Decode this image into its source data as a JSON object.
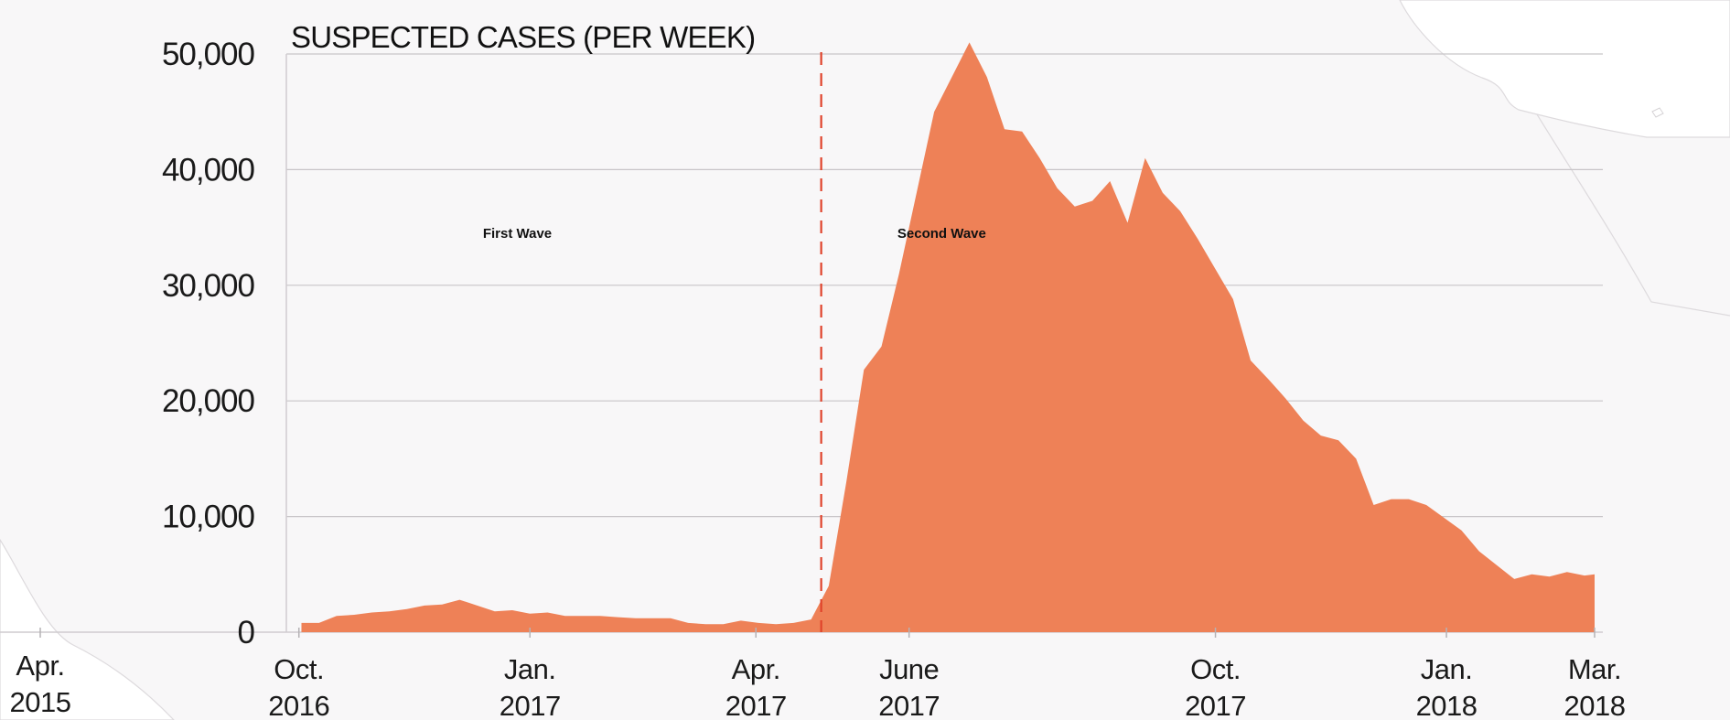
{
  "chart_data": {
    "type": "area",
    "title": "SUSPECTED CASES (PER WEEK)",
    "ylim": [
      0,
      50000
    ],
    "yticks": [
      {
        "value": 0,
        "label": "0"
      },
      {
        "value": 10000,
        "label": "10,000"
      },
      {
        "value": 20000,
        "label": "20,000"
      },
      {
        "value": 30000,
        "label": "30,000"
      },
      {
        "value": 40000,
        "label": "40,000"
      },
      {
        "value": 50000,
        "label": "50,000"
      }
    ],
    "xticks": [
      {
        "date": "2016-10-01",
        "line1": "Oct.",
        "line2": "2016"
      },
      {
        "date": "2017-01-01",
        "line1": "Jan.",
        "line2": "2017"
      },
      {
        "date": "2017-04-01",
        "line1": "Apr.",
        "line2": "2017"
      },
      {
        "date": "2017-06-01",
        "line1": "June",
        "line2": "2017"
      },
      {
        "date": "2017-10-01",
        "line1": "Oct.",
        "line2": "2017"
      },
      {
        "date": "2018-01-01",
        "line1": "Jan.",
        "line2": "2018"
      },
      {
        "date": "2018-03-01",
        "line1": "Mar.",
        "line2": "2018"
      }
    ],
    "background_axis_label": {
      "line1": "Apr.",
      "line2": "2015"
    },
    "grid": true,
    "fill_color": "#ee8157",
    "divider": {
      "date": "2017-04-27",
      "color": "#e0432b",
      "style": "dashed"
    },
    "annotations": [
      {
        "text": "First Wave",
        "date": "2016-12-27",
        "value": 34500
      },
      {
        "text": "Second Wave",
        "date": "2017-06-14",
        "value": 34500
      }
    ],
    "series": [
      {
        "x": [
          "2016-10-02",
          "2016-10-09",
          "2016-10-16",
          "2016-10-23",
          "2016-10-30",
          "2016-11-06",
          "2016-11-13",
          "2016-11-20",
          "2016-11-27",
          "2016-12-04",
          "2016-12-11",
          "2016-12-18",
          "2016-12-25",
          "2017-01-01",
          "2017-01-08",
          "2017-01-15",
          "2017-01-22",
          "2017-01-29",
          "2017-02-05",
          "2017-02-12",
          "2017-02-19",
          "2017-02-26",
          "2017-03-05",
          "2017-03-12",
          "2017-03-19",
          "2017-03-26",
          "2017-04-02",
          "2017-04-09",
          "2017-04-16",
          "2017-04-23",
          "2017-04-30",
          "2017-05-07",
          "2017-05-14",
          "2017-05-21",
          "2017-05-28",
          "2017-06-04",
          "2017-06-11",
          "2017-06-18",
          "2017-06-25",
          "2017-07-02",
          "2017-07-09",
          "2017-07-16",
          "2017-07-23",
          "2017-07-30",
          "2017-08-06",
          "2017-08-13",
          "2017-08-20",
          "2017-08-27",
          "2017-09-03",
          "2017-09-10",
          "2017-09-17",
          "2017-09-24",
          "2017-10-01",
          "2017-10-08",
          "2017-10-15",
          "2017-10-22",
          "2017-10-29",
          "2017-11-05",
          "2017-11-12",
          "2017-11-19",
          "2017-11-26",
          "2017-12-03",
          "2017-12-10",
          "2017-12-17",
          "2017-12-24",
          "2017-12-31",
          "2018-01-07",
          "2018-01-14",
          "2018-01-21",
          "2018-01-28",
          "2018-02-04",
          "2018-02-11",
          "2018-02-18",
          "2018-02-25",
          "2018-03-01"
        ],
        "values": [
          800,
          800,
          1400,
          1500,
          1700,
          1800,
          2000,
          2300,
          2400,
          2800,
          2300,
          1800,
          1900,
          1600,
          1700,
          1400,
          1400,
          1400,
          1300,
          1200,
          1200,
          1200,
          800,
          700,
          700,
          1000,
          800,
          700,
          800,
          1100,
          4000,
          13000,
          22700,
          24700,
          31000,
          38000,
          45000,
          48000,
          51000,
          48000,
          43500,
          43300,
          41000,
          38400,
          36800,
          37300,
          39000,
          35400,
          41000,
          38000,
          36400,
          34000,
          31400,
          28800,
          23500,
          21900,
          20200,
          18300,
          17000,
          16600,
          15000,
          11000,
          11500,
          11500,
          11000,
          9900,
          8800,
          7000,
          5800,
          4600,
          5000,
          4800,
          5200,
          4900,
          5000
        ]
      }
    ]
  }
}
